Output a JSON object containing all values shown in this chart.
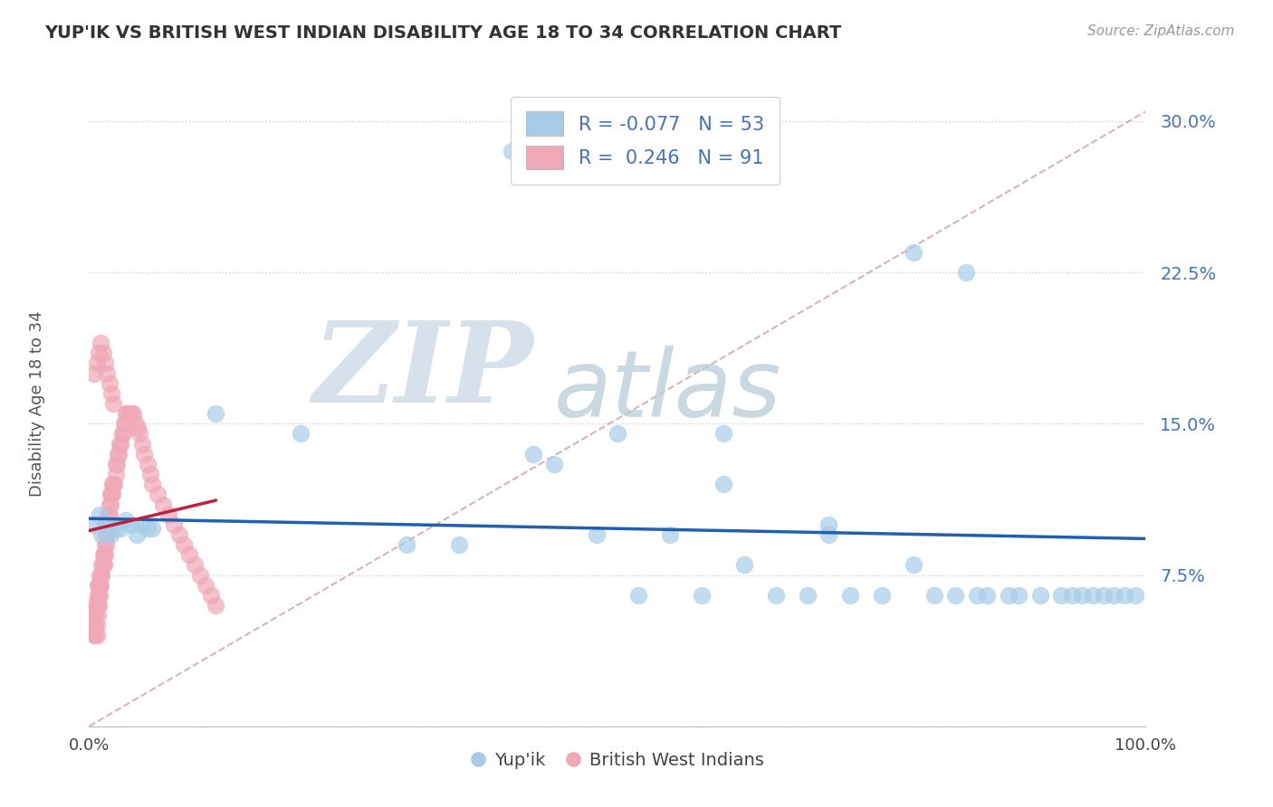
{
  "title": "YUP'IK VS BRITISH WEST INDIAN DISABILITY AGE 18 TO 34 CORRELATION CHART",
  "source": "Source: ZipAtlas.com",
  "ylabel": "Disability Age 18 to 34",
  "yticks": [
    0.0,
    0.075,
    0.15,
    0.225,
    0.3
  ],
  "ytick_labels": [
    "",
    "7.5%",
    "15.0%",
    "22.5%",
    "30.0%"
  ],
  "xticks": [
    0.0,
    1.0
  ],
  "xtick_labels": [
    "0.0%",
    "100.0%"
  ],
  "xlim": [
    0.0,
    1.0
  ],
  "ylim": [
    0.0,
    0.32
  ],
  "blue_R": -0.077,
  "blue_N": 53,
  "pink_R": 0.246,
  "pink_N": 91,
  "blue_color": "#a8cce8",
  "pink_color": "#f0a8b8",
  "trend_blue_color": "#2060b0",
  "trend_pink_color": "#c02040",
  "diag_color": "#d0a0a8",
  "watermark_zip": "ZIP",
  "watermark_atlas": "atlas",
  "watermark_color_zip": "#c8d8e8",
  "watermark_color_atlas": "#b0c8d8",
  "legend_label_blue": "Yup'ik",
  "legend_label_pink": "British West Indians",
  "blue_x": [
    0.005,
    0.01,
    0.012,
    0.015,
    0.018,
    0.02,
    0.025,
    0.03,
    0.035,
    0.04,
    0.045,
    0.05,
    0.055,
    0.06,
    0.12,
    0.2,
    0.3,
    0.35,
    0.42,
    0.44,
    0.48,
    0.52,
    0.55,
    0.58,
    0.6,
    0.62,
    0.65,
    0.68,
    0.7,
    0.72,
    0.75,
    0.78,
    0.8,
    0.82,
    0.84,
    0.85,
    0.87,
    0.88,
    0.9,
    0.92,
    0.93,
    0.94,
    0.95,
    0.96,
    0.97,
    0.98,
    0.99,
    0.4,
    0.78,
    0.5,
    0.6,
    0.7,
    0.83
  ],
  "blue_y": [
    0.1,
    0.105,
    0.095,
    0.1,
    0.1,
    0.095,
    0.098,
    0.098,
    0.102,
    0.1,
    0.095,
    0.1,
    0.098,
    0.098,
    0.155,
    0.145,
    0.09,
    0.09,
    0.135,
    0.13,
    0.095,
    0.065,
    0.095,
    0.065,
    0.12,
    0.08,
    0.065,
    0.065,
    0.1,
    0.065,
    0.065,
    0.08,
    0.065,
    0.065,
    0.065,
    0.065,
    0.065,
    0.065,
    0.065,
    0.065,
    0.065,
    0.065,
    0.065,
    0.065,
    0.065,
    0.065,
    0.065,
    0.285,
    0.235,
    0.145,
    0.145,
    0.095,
    0.225
  ],
  "pink_x": [
    0.003,
    0.004,
    0.005,
    0.005,
    0.006,
    0.006,
    0.006,
    0.007,
    0.007,
    0.007,
    0.008,
    0.008,
    0.008,
    0.008,
    0.009,
    0.009,
    0.009,
    0.01,
    0.01,
    0.01,
    0.011,
    0.011,
    0.012,
    0.012,
    0.013,
    0.013,
    0.014,
    0.014,
    0.015,
    0.015,
    0.016,
    0.016,
    0.017,
    0.017,
    0.018,
    0.018,
    0.019,
    0.019,
    0.02,
    0.02,
    0.021,
    0.022,
    0.022,
    0.023,
    0.024,
    0.025,
    0.025,
    0.026,
    0.027,
    0.028,
    0.029,
    0.03,
    0.031,
    0.032,
    0.033,
    0.034,
    0.035,
    0.036,
    0.038,
    0.04,
    0.042,
    0.044,
    0.046,
    0.048,
    0.05,
    0.052,
    0.055,
    0.058,
    0.06,
    0.065,
    0.07,
    0.075,
    0.08,
    0.085,
    0.09,
    0.095,
    0.1,
    0.105,
    0.11,
    0.115,
    0.12,
    0.005,
    0.007,
    0.009,
    0.011,
    0.013,
    0.015,
    0.017,
    0.019,
    0.021,
    0.023
  ],
  "pink_y": [
    0.06,
    0.055,
    0.045,
    0.05,
    0.045,
    0.05,
    0.055,
    0.045,
    0.05,
    0.06,
    0.055,
    0.06,
    0.065,
    0.07,
    0.06,
    0.065,
    0.07,
    0.065,
    0.07,
    0.075,
    0.07,
    0.075,
    0.075,
    0.08,
    0.08,
    0.085,
    0.08,
    0.085,
    0.085,
    0.09,
    0.09,
    0.095,
    0.095,
    0.1,
    0.1,
    0.105,
    0.105,
    0.11,
    0.11,
    0.115,
    0.115,
    0.115,
    0.12,
    0.12,
    0.12,
    0.125,
    0.13,
    0.13,
    0.135,
    0.135,
    0.14,
    0.14,
    0.145,
    0.145,
    0.15,
    0.15,
    0.155,
    0.155,
    0.155,
    0.155,
    0.155,
    0.15,
    0.148,
    0.145,
    0.14,
    0.135,
    0.13,
    0.125,
    0.12,
    0.115,
    0.11,
    0.105,
    0.1,
    0.095,
    0.09,
    0.085,
    0.08,
    0.075,
    0.07,
    0.065,
    0.06,
    0.175,
    0.18,
    0.185,
    0.19,
    0.185,
    0.18,
    0.175,
    0.17,
    0.165,
    0.16
  ]
}
